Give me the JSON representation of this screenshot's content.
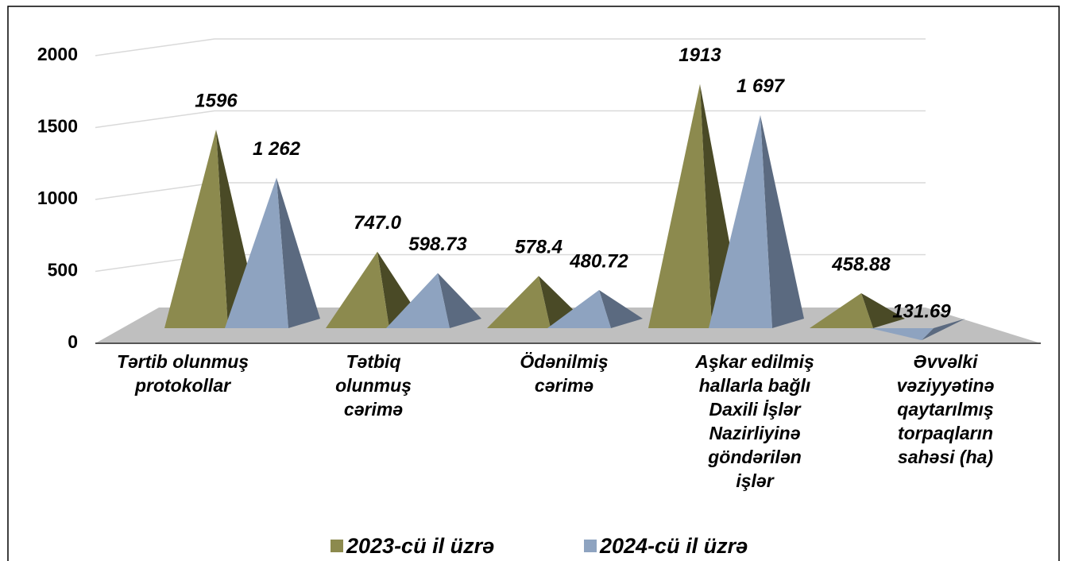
{
  "chart_data": {
    "type": "pyramid",
    "categories": [
      "Tərtib olunmuş\nprotokollar",
      "Tətbiq\nolunmuş\ncərimə",
      "Ödənilmiş\ncərimə",
      "Aşkar edilmiş\nhallarla bağlı\nDaxili İşlər\nNazirliyinə\ngöndərilən\nişlər",
      "Əvvəlki\nvəziyyətinə\nqaytarılmış\ntorpaqların\nsahəsi (ha)"
    ],
    "series": [
      {
        "name": "2023-cü il üzrə",
        "color": "#8c8a4e",
        "side_color": "#4a4a26",
        "values": [
          1596,
          747.0,
          578.4,
          1913,
          458.88
        ],
        "value_labels": [
          "1596",
          "747.0",
          "578.4",
          "1913",
          "458.88"
        ]
      },
      {
        "name": "2024-cü il üzrə",
        "color": "#8ea3c0",
        "side_color": "#5b6a80",
        "values": [
          1262,
          598.73,
          480.72,
          1697,
          131.69
        ],
        "value_labels": [
          "1 262",
          "598.73",
          "480.72",
          "1 697",
          "131.69"
        ]
      }
    ],
    "ylim": [
      0,
      2000
    ],
    "yticks": [
      0,
      500,
      1000,
      1500,
      2000
    ],
    "grid": true,
    "legend": "bottom"
  }
}
